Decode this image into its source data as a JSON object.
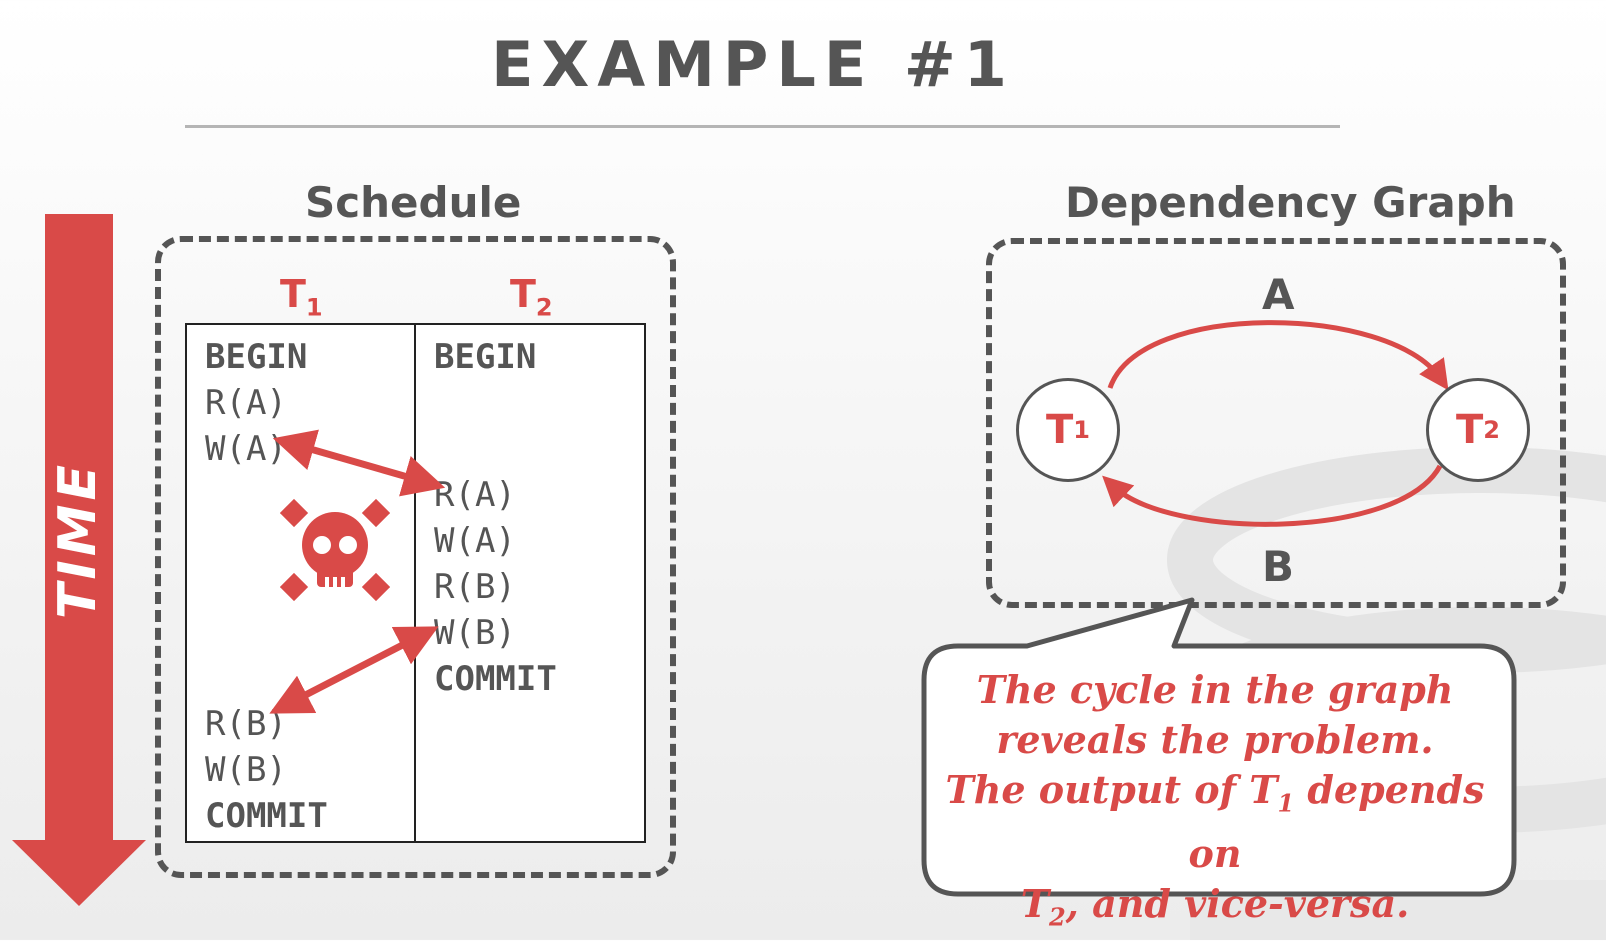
{
  "title": "EXAMPLE #1",
  "schedule": {
    "heading": "Schedule",
    "time_label": "TIME",
    "t1": {
      "name": "T",
      "sub": "1",
      "ops": [
        "BEGIN",
        "R(A)",
        "W(A)",
        "R(B)",
        "W(B)",
        "COMMIT"
      ]
    },
    "t2": {
      "name": "T",
      "sub": "2",
      "ops": [
        "BEGIN",
        "R(A)",
        "W(A)",
        "R(B)",
        "W(B)",
        "COMMIT"
      ]
    }
  },
  "graph": {
    "heading": "Dependency Graph",
    "node1": {
      "name": "T",
      "sub": "1"
    },
    "node2": {
      "name": "T",
      "sub": "2"
    },
    "edge_top_label": "A",
    "edge_bottom_label": "B"
  },
  "callout": {
    "line1": "The cycle in the graph",
    "line2": "reveals the problem.",
    "line3_pre": "The output of T",
    "line3_sub": "1",
    "line3_post": " depends on",
    "line4_pre": "T",
    "line4_sub": "2",
    "line4_post": ", and vice-versa."
  },
  "colors": {
    "accent": "#d94a48",
    "text": "#555555",
    "rule": "#b5b5b5"
  }
}
